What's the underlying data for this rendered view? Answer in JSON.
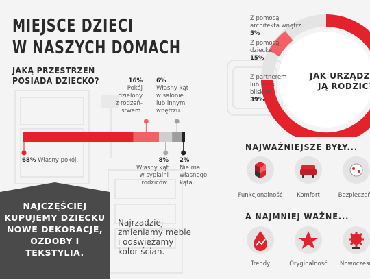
{
  "title_line1": "MIEJSCE DZIECI",
  "title_line2": "W NASZYCH DOMACH",
  "question_line1": "JAKĄ PRZESTRZEŃ",
  "question_line2": "POSIADA DZIECKO?",
  "bar_segments": [
    {
      "pct": "68%",
      "label": "Własny pokój.",
      "value": 68,
      "color": "#e3222b"
    },
    {
      "pct": "16%",
      "label": "Pokój dzielony z rodzeństwem.",
      "value": 16,
      "color": "#f26166"
    },
    {
      "pct": "8%",
      "label": "Własny kąt w sypialni rodziców.",
      "value": 8,
      "color": "#cfcfcf"
    },
    {
      "pct": "6%",
      "label": "Własny kąt w salonie lub innym wnętrzu.",
      "value": 6,
      "color": "#9e9e9e"
    },
    {
      "pct": "2%",
      "label": "Nie ma własnego kąta.",
      "value": 2,
      "color": "#222222"
    }
  ],
  "label_68": "68%",
  "label_68_text": "Własny pokój.",
  "label_16_pct": "16%",
  "label_16_l1": "Pokój",
  "label_16_l2": "dzielony",
  "label_16_l3": "z rodzeń-",
  "label_16_l4": "stwem.",
  "label_6_pct": "6%",
  "label_6_l1": "Własny kąt",
  "label_6_l2": "w salonie",
  "label_6_l3": "lub innym",
  "label_6_l4": "wnętrzu.",
  "label_8_pct": "8%",
  "label_8_l1": "Własny kąt",
  "label_8_l2": "w sypialni",
  "label_8_l3": "rodziców.",
  "label_2_pct": "2%",
  "label_2_l1": "Nie ma",
  "label_2_l2": "własnego",
  "label_2_l3": "kąta.",
  "callout_l1": "NAJCZĘŚCIEJ",
  "callout_l2": "KUPUJEMY DZIECKU",
  "callout_l3": "NOWE DEKORACJE,",
  "callout_l4": "OZDOBY I TEKSTYLIA.",
  "note_l1": "Najrzadziej",
  "note_l2": "zmieniamy meble",
  "note_l3": "i odświeżamy",
  "note_l4": "kolor ścian.",
  "donut_title_l1": "JAK URZĄDZIŁ",
  "donut_title_l2": "JĄ RODZIC?",
  "donut_items": [
    {
      "l1": "Z pomocą",
      "l2": "architekta wnętrz.",
      "pct": "5%"
    },
    {
      "l1": "Z pomocą",
      "l2": "dziecka.",
      "pct": "15%"
    },
    {
      "l1": "Z partnerem",
      "l2": "lub kimś",
      "l3": "bliskim.",
      "pct": "39%"
    }
  ],
  "d_a_l1": "Z pomocą",
  "d_a_l2": "architekta wnętrz.",
  "d_a_pct": "5%",
  "d_b_l1": "Z pomocą",
  "d_b_l2": "dziecka.",
  "d_b_pct": "15%",
  "d_c_l1": "Z partnerem",
  "d_c_l2": "lub kimś",
  "d_c_l3": "bliskim.",
  "d_c_pct": "39%",
  "most_important": "NAJWAŻNIEJSZE BYŁY...",
  "least_important": "A NAJMNIEJ WAŻNE...",
  "icons_top": [
    {
      "icon": "cubes-icon",
      "label": "Funkcjonalność"
    },
    {
      "icon": "armchair-icon",
      "label": "Komfort"
    },
    {
      "icon": "safety-icon",
      "label": "Bezpieczeńs"
    }
  ],
  "icons_bottom": [
    {
      "icon": "trend-drop-icon",
      "label": "Trendy"
    },
    {
      "icon": "star-icon",
      "label": "Oryginalność"
    },
    {
      "icon": "gear-icon",
      "label": "Nowoczesn"
    }
  ],
  "icon_label_1": "Funkcjonalność",
  "icon_label_2": "Komfort",
  "icon_label_3": "Bezpieczeńs",
  "icon_label_4": "Trendy",
  "icon_label_5": "Oryginalność",
  "icon_label_6": "Nowoczesn",
  "colors": {
    "red": "#e3222b",
    "pink": "#f26166",
    "dark": "#2a2a2a",
    "grey": "#4a4a4a"
  }
}
